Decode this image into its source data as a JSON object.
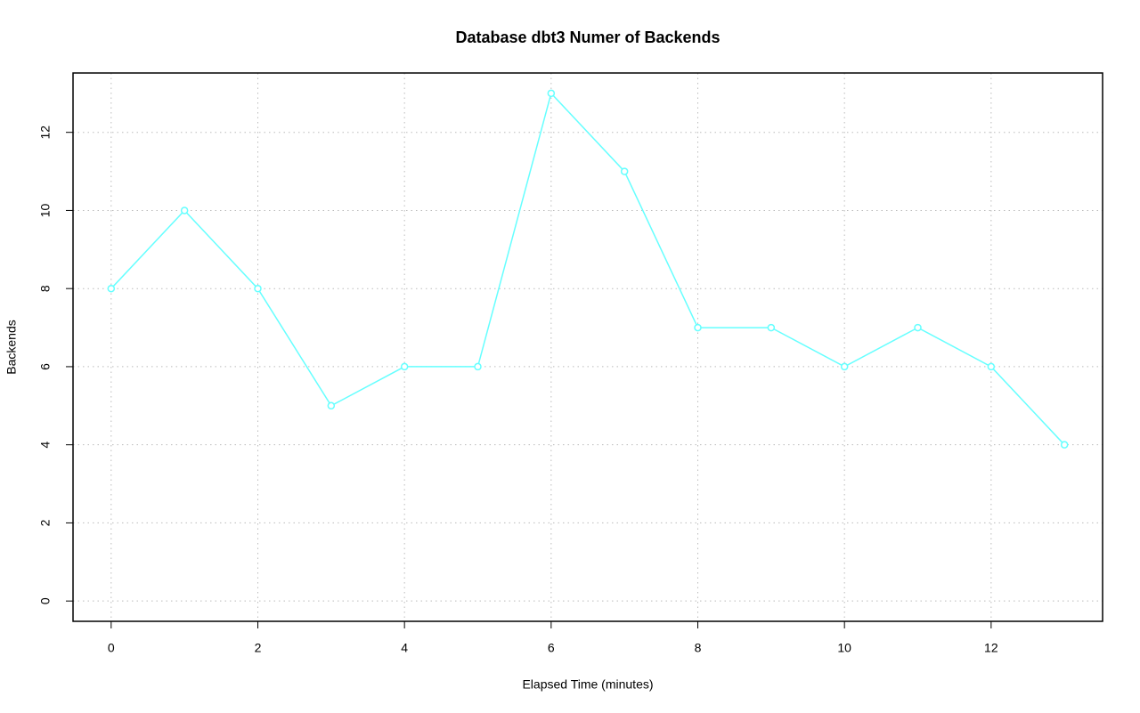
{
  "chart_data": {
    "type": "line",
    "title": "Database dbt3 Numer of Backends",
    "x_label": "Elapsed Time (minutes)",
    "y_label": "Backends",
    "x": [
      0,
      1,
      2,
      3,
      4,
      5,
      6,
      7,
      8,
      9,
      10,
      11,
      12,
      13
    ],
    "series": [
      {
        "name": "Backends",
        "color": "#66ffff",
        "values": [
          8,
          10,
          8,
          5,
          6,
          6,
          13,
          11,
          7,
          7,
          6,
          7,
          6,
          4
        ]
      }
    ],
    "xlim": [
      -0.52,
      13.52
    ],
    "ylim": [
      -0.52,
      13.52
    ],
    "xticks": [
      0,
      2,
      4,
      6,
      8,
      10,
      12
    ],
    "yticks": [
      0,
      2,
      4,
      6,
      8,
      10,
      12
    ],
    "grid": true
  }
}
